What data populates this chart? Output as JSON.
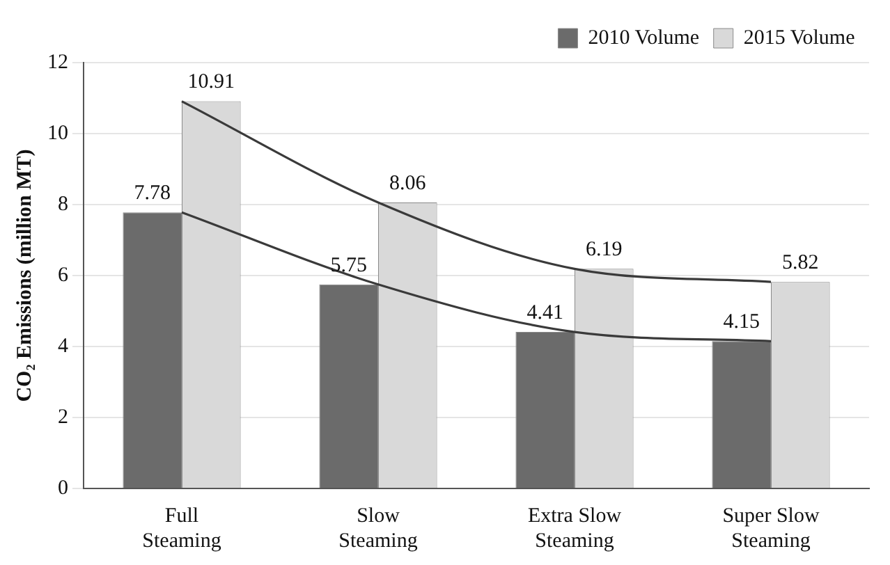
{
  "chart_data": {
    "type": "bar",
    "ylabel": "CO₂ Emissions (million MT)",
    "categories": [
      "Full Steaming",
      "Slow Steaming",
      "Extra Slow Steaming",
      "Super Slow Steaming"
    ],
    "series": [
      {
        "name": "2010 Volume",
        "color": "#6b6b6b",
        "values": [
          7.78,
          5.75,
          4.41,
          4.15
        ],
        "value_labels": [
          "7.78",
          "5.75",
          "4.41",
          "4.15"
        ]
      },
      {
        "name": "2015 Volume",
        "color": "#d9d9d9",
        "values": [
          10.91,
          8.06,
          6.19,
          5.82
        ],
        "value_labels": [
          "10.91",
          "8.06",
          "6.19",
          "5.82"
        ]
      },
      {
        "type": "line",
        "color": "#3a3a3a",
        "values": [
          7.78,
          5.75,
          4.41,
          4.15
        ]
      },
      {
        "type": "line",
        "color": "#3a3a3a",
        "values": [
          10.91,
          8.06,
          6.19,
          5.82
        ]
      }
    ],
    "ylim": [
      0,
      12
    ],
    "yticks": [
      0,
      2,
      4,
      6,
      8,
      10,
      12
    ],
    "grid": "y",
    "legend": "top right",
    "marker": "none",
    "line_style": "solid"
  }
}
